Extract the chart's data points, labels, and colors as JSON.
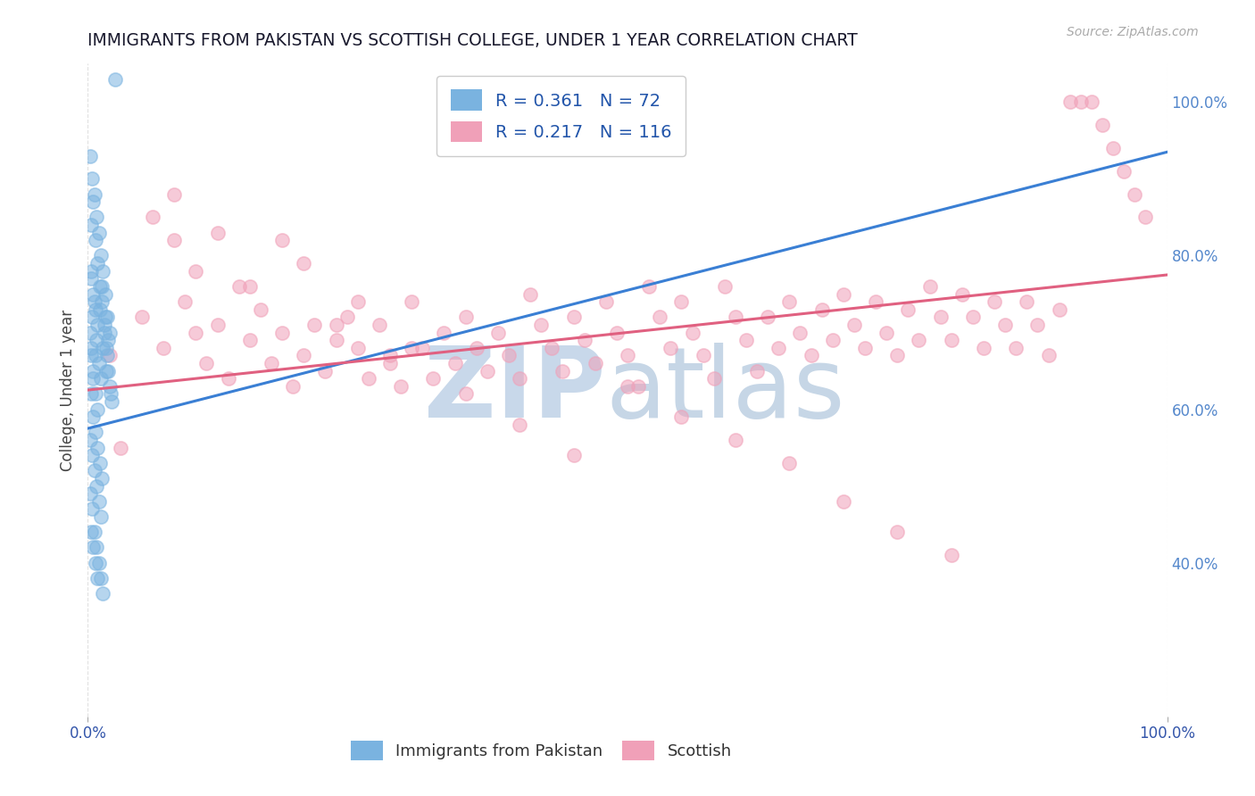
{
  "title": "IMMIGRANTS FROM PAKISTAN VS SCOTTISH COLLEGE, UNDER 1 YEAR CORRELATION CHART",
  "source": "Source: ZipAtlas.com",
  "ylabel": "College, Under 1 year",
  "background_color": "#ffffff",
  "grid_color": "#dddddd",
  "blue_dot_color": "#7ab3e0",
  "pink_dot_color": "#f0a0b8",
  "blue_line_color": "#3a7fd4",
  "pink_line_color": "#e06080",
  "title_color": "#1a1a2e",
  "axis_label_color": "#444444",
  "right_tick_color": "#5588cc",
  "watermark_zip_color": "#c8d8ea",
  "watermark_atlas_color": "#b8cce0",
  "legend_text_color": "#2255aa",
  "blue_R": 0.361,
  "blue_N": 72,
  "pink_R": 0.217,
  "pink_N": 116,
  "xlim": [
    0.0,
    1.0
  ],
  "ylim": [
    0.2,
    1.05
  ],
  "yticks": [
    0.4,
    0.6,
    0.8,
    1.0
  ],
  "ytick_labels": [
    "40.0%",
    "60.0%",
    "80.0%",
    "100.0%"
  ],
  "xticks": [
    0.0,
    1.0
  ],
  "xtick_labels": [
    "0.0%",
    "100.0%"
  ],
  "blue_line_x": [
    0.0,
    1.0
  ],
  "blue_line_y": [
    0.575,
    0.935
  ],
  "pink_line_x": [
    0.0,
    1.0
  ],
  "pink_line_y": [
    0.625,
    0.775
  ],
  "blue_scatter_x": [
    0.002,
    0.003,
    0.004,
    0.005,
    0.006,
    0.007,
    0.008,
    0.009,
    0.01,
    0.011,
    0.012,
    0.013,
    0.014,
    0.015,
    0.016,
    0.017,
    0.018,
    0.019,
    0.02,
    0.022,
    0.003,
    0.005,
    0.007,
    0.009,
    0.011,
    0.013,
    0.015,
    0.017,
    0.019,
    0.021,
    0.002,
    0.004,
    0.006,
    0.008,
    0.01,
    0.012,
    0.014,
    0.016,
    0.018,
    0.02,
    0.003,
    0.005,
    0.007,
    0.009,
    0.011,
    0.013,
    0.003,
    0.005,
    0.007,
    0.009,
    0.002,
    0.004,
    0.006,
    0.008,
    0.01,
    0.012,
    0.014,
    0.003,
    0.005,
    0.007,
    0.002,
    0.004,
    0.006,
    0.008,
    0.01,
    0.012,
    0.003,
    0.005,
    0.007,
    0.009,
    0.003,
    0.025
  ],
  "blue_scatter_y": [
    0.7,
    0.68,
    0.72,
    0.65,
    0.74,
    0.67,
    0.69,
    0.71,
    0.66,
    0.73,
    0.64,
    0.76,
    0.68,
    0.7,
    0.72,
    0.65,
    0.67,
    0.69,
    0.63,
    0.61,
    0.84,
    0.87,
    0.82,
    0.79,
    0.76,
    0.74,
    0.71,
    0.68,
    0.65,
    0.62,
    0.93,
    0.9,
    0.88,
    0.85,
    0.83,
    0.8,
    0.78,
    0.75,
    0.72,
    0.7,
    0.62,
    0.59,
    0.57,
    0.55,
    0.53,
    0.51,
    0.67,
    0.64,
    0.62,
    0.6,
    0.49,
    0.47,
    0.44,
    0.42,
    0.4,
    0.38,
    0.36,
    0.77,
    0.75,
    0.73,
    0.56,
    0.54,
    0.52,
    0.5,
    0.48,
    0.46,
    0.44,
    0.42,
    0.4,
    0.38,
    0.78,
    1.03
  ],
  "pink_scatter_x": [
    0.02,
    0.05,
    0.07,
    0.08,
    0.09,
    0.1,
    0.11,
    0.12,
    0.13,
    0.14,
    0.15,
    0.16,
    0.17,
    0.18,
    0.19,
    0.2,
    0.21,
    0.22,
    0.23,
    0.24,
    0.25,
    0.26,
    0.27,
    0.28,
    0.29,
    0.3,
    0.31,
    0.32,
    0.33,
    0.34,
    0.35,
    0.36,
    0.37,
    0.38,
    0.39,
    0.4,
    0.41,
    0.42,
    0.43,
    0.44,
    0.45,
    0.46,
    0.47,
    0.48,
    0.49,
    0.5,
    0.51,
    0.52,
    0.53,
    0.54,
    0.55,
    0.56,
    0.57,
    0.58,
    0.59,
    0.6,
    0.61,
    0.62,
    0.63,
    0.64,
    0.65,
    0.66,
    0.67,
    0.68,
    0.69,
    0.7,
    0.71,
    0.72,
    0.73,
    0.74,
    0.75,
    0.76,
    0.77,
    0.78,
    0.79,
    0.8,
    0.81,
    0.82,
    0.83,
    0.84,
    0.85,
    0.86,
    0.87,
    0.88,
    0.89,
    0.9,
    0.91,
    0.92,
    0.93,
    0.94,
    0.95,
    0.96,
    0.97,
    0.98,
    0.03,
    0.06,
    0.08,
    0.1,
    0.12,
    0.15,
    0.18,
    0.2,
    0.23,
    0.25,
    0.28,
    0.3,
    0.35,
    0.4,
    0.45,
    0.5,
    0.55,
    0.6,
    0.65,
    0.7,
    0.75,
    0.8
  ],
  "pink_scatter_y": [
    0.67,
    0.72,
    0.68,
    0.82,
    0.74,
    0.7,
    0.66,
    0.71,
    0.64,
    0.76,
    0.69,
    0.73,
    0.66,
    0.7,
    0.63,
    0.67,
    0.71,
    0.65,
    0.69,
    0.72,
    0.68,
    0.64,
    0.71,
    0.67,
    0.63,
    0.74,
    0.68,
    0.64,
    0.7,
    0.66,
    0.72,
    0.68,
    0.65,
    0.7,
    0.67,
    0.64,
    0.75,
    0.71,
    0.68,
    0.65,
    0.72,
    0.69,
    0.66,
    0.74,
    0.7,
    0.67,
    0.63,
    0.76,
    0.72,
    0.68,
    0.74,
    0.7,
    0.67,
    0.64,
    0.76,
    0.72,
    0.69,
    0.65,
    0.72,
    0.68,
    0.74,
    0.7,
    0.67,
    0.73,
    0.69,
    0.75,
    0.71,
    0.68,
    0.74,
    0.7,
    0.67,
    0.73,
    0.69,
    0.76,
    0.72,
    0.69,
    0.75,
    0.72,
    0.68,
    0.74,
    0.71,
    0.68,
    0.74,
    0.71,
    0.67,
    0.73,
    1.0,
    1.0,
    1.0,
    0.97,
    0.94,
    0.91,
    0.88,
    0.85,
    0.55,
    0.85,
    0.88,
    0.78,
    0.83,
    0.76,
    0.82,
    0.79,
    0.71,
    0.74,
    0.66,
    0.68,
    0.62,
    0.58,
    0.54,
    0.63,
    0.59,
    0.56,
    0.53,
    0.48,
    0.44,
    0.41
  ],
  "dot_size": 120,
  "dot_alpha": 0.55,
  "dot_linewidth": 1.2
}
